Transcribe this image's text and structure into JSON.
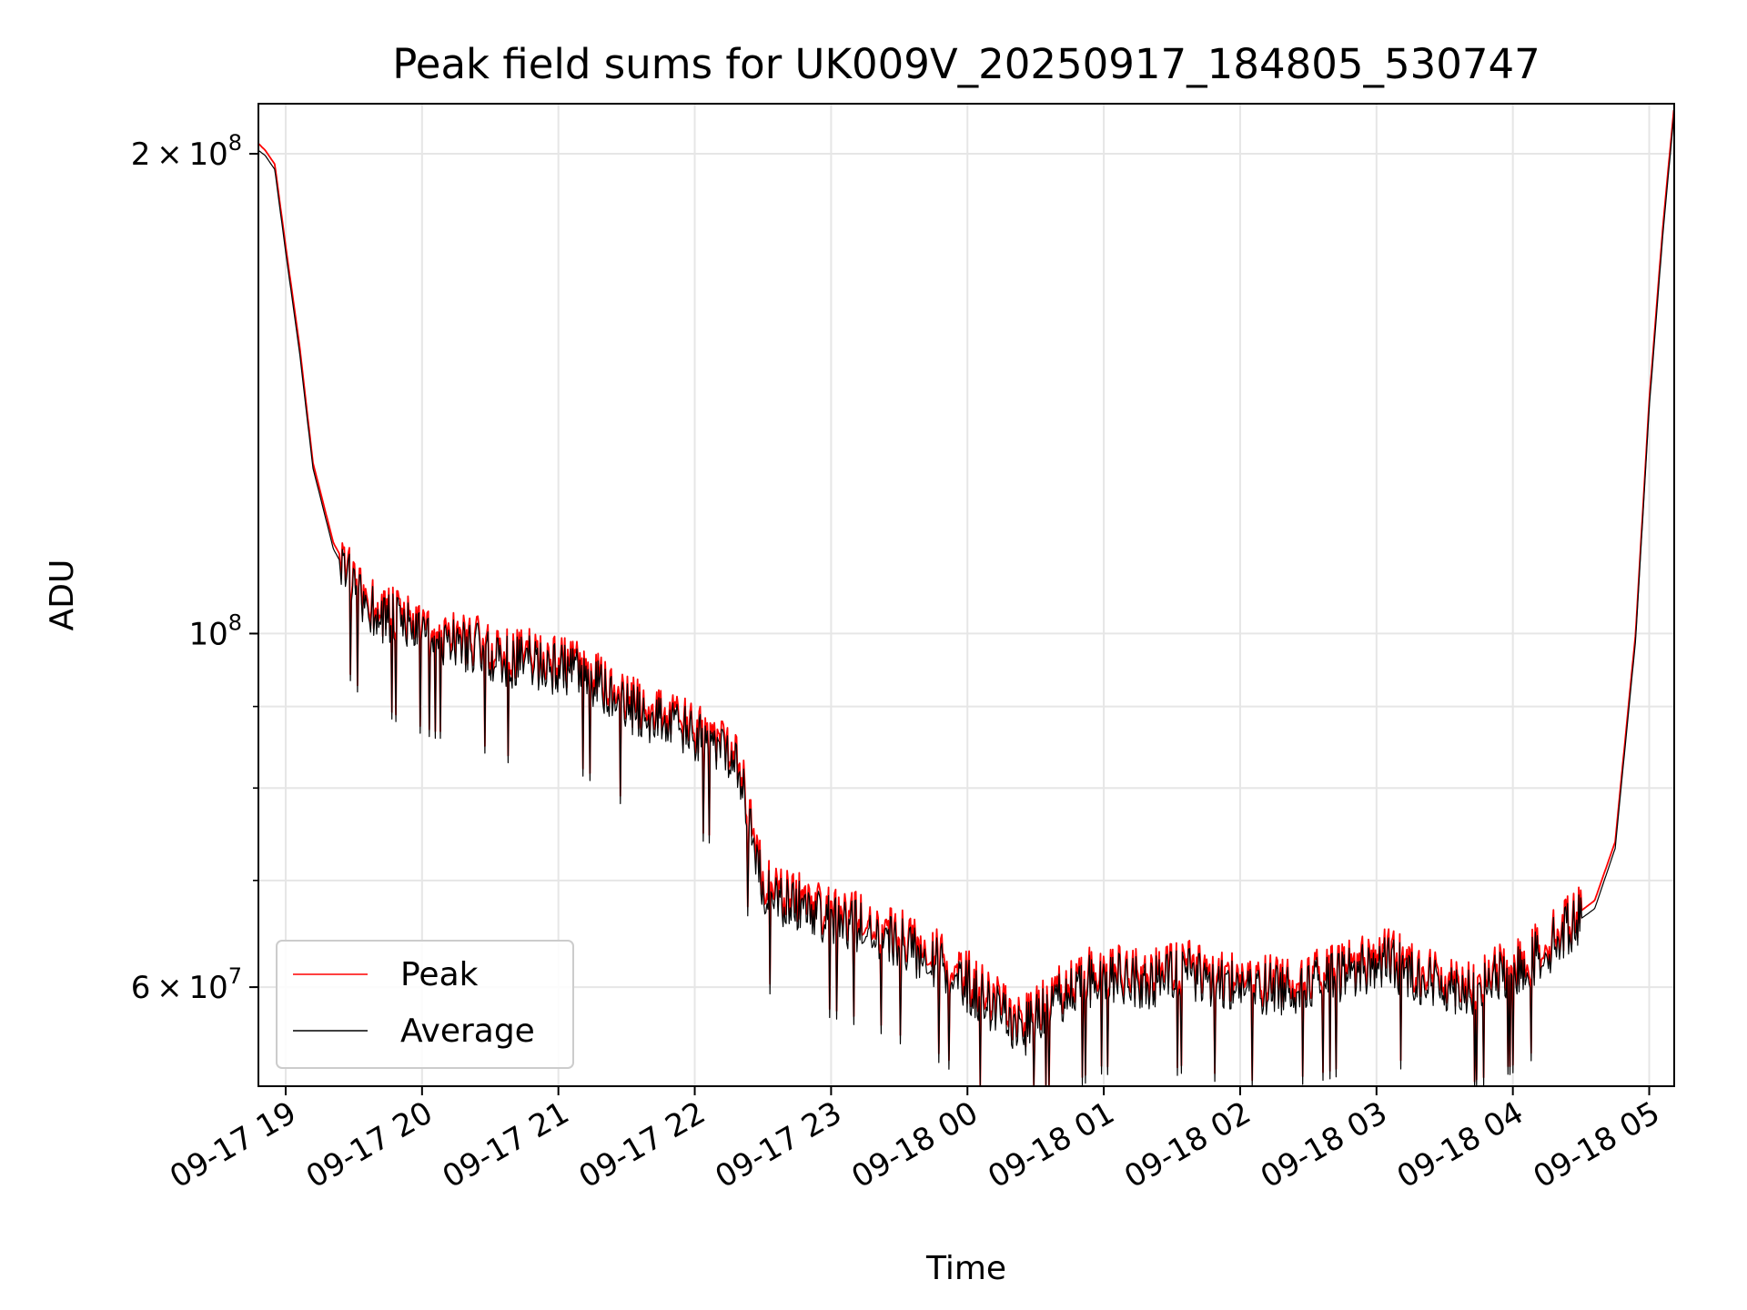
{
  "chart_data": {
    "type": "line",
    "title": "Peak field sums for UK009V_20250917_184805_530747",
    "xlabel": "Time",
    "ylabel": "ADU",
    "yscale": "log",
    "ylim": [
      52000000,
      215000000
    ],
    "xlim": [
      "09-17 18:48",
      "09-18 05:11"
    ],
    "grid": true,
    "legend_position": "lower-left",
    "x_ticks": [
      "09-17 19",
      "09-17 20",
      "09-17 21",
      "09-17 22",
      "09-17 23",
      "09-18 00",
      "09-18 01",
      "09-18 02",
      "09-18 03",
      "09-18 04",
      "09-18 05"
    ],
    "y_major_ticks": [
      {
        "value": 200000000,
        "mantissa": "2",
        "exp": "8"
      },
      {
        "value": 100000000,
        "mantissa": "",
        "exp": "8"
      },
      {
        "value": 60000000,
        "mantissa": "6",
        "exp": "7"
      }
    ],
    "y_minor_ticks": [
      200000000,
      100000000,
      90000000,
      80000000,
      70000000,
      60000000,
      50000000
    ],
    "series_colors": {
      "Peak": "#ff0000",
      "Average": "#000000"
    },
    "series": [
      {
        "name": "Peak",
        "color": "#ff0000",
        "t_hours": [
          0.0,
          0.05,
          0.12,
          0.2,
          0.3,
          0.4,
          0.55,
          0.7,
          0.85,
          1.0,
          1.2,
          1.4,
          1.6,
          1.8,
          2.0,
          2.2,
          2.4,
          2.6,
          2.8,
          3.0,
          3.2,
          3.4,
          3.5,
          3.7,
          4.0,
          4.5,
          5.0,
          5.3,
          5.6,
          5.9,
          6.2,
          6.5,
          6.8,
          7.1,
          7.4,
          7.7,
          8.0,
          8.3,
          8.6,
          8.9,
          9.2,
          9.45,
          9.6,
          9.8,
          9.95,
          10.1,
          10.2,
          10.3,
          10.38
        ],
        "values": [
          203000000,
          201000000,
          197000000,
          175000000,
          152000000,
          128000000,
          114000000,
          108000000,
          104000000,
          103000000,
          101000000,
          100000000,
          99000000,
          97000000,
          97000000,
          96000000,
          95000000,
          92000000,
          90000000,
          89000000,
          87000000,
          86000000,
          85000000,
          70000000,
          68000000,
          66000000,
          63000000,
          60000000,
          57000000,
          60000000,
          62000000,
          61000000,
          62000000,
          61000000,
          60500000,
          61000000,
          62000000,
          63000000,
          61000000,
          60500000,
          62000000,
          64000000,
          66000000,
          68000000,
          74000000,
          100000000,
          140000000,
          180000000,
          213000000
        ]
      },
      {
        "name": "Average",
        "color": "#000000",
        "t_hours": [
          0.0,
          0.05,
          0.12,
          0.2,
          0.3,
          0.4,
          0.55,
          0.7,
          0.85,
          1.0,
          1.2,
          1.4,
          1.6,
          1.8,
          2.0,
          2.2,
          2.4,
          2.6,
          2.8,
          3.0,
          3.2,
          3.4,
          3.5,
          3.7,
          4.0,
          4.5,
          5.0,
          5.3,
          5.6,
          5.9,
          6.2,
          6.5,
          6.8,
          7.1,
          7.4,
          7.7,
          8.0,
          8.3,
          8.6,
          8.9,
          9.2,
          9.45,
          9.6,
          9.8,
          9.95,
          10.1,
          10.2,
          10.3,
          10.38
        ],
        "values": [
          201000000,
          199500000,
          195500000,
          173500000,
          150500000,
          127000000,
          113000000,
          107000000,
          103000000,
          102000000,
          100000000,
          99000000,
          98000000,
          96000000,
          96000000,
          95000000,
          94000000,
          91000000,
          89000000,
          88000000,
          86000000,
          85000000,
          84000000,
          69000000,
          67200000,
          65200000,
          62200000,
          59200000,
          56300000,
          59300000,
          61300000,
          60300000,
          61300000,
          60300000,
          59800000,
          60300000,
          61300000,
          62200000,
          60300000,
          59800000,
          61300000,
          63300000,
          65300000,
          67200000,
          73300000,
          99000000,
          138500000,
          178000000,
          211000000
        ]
      }
    ]
  }
}
